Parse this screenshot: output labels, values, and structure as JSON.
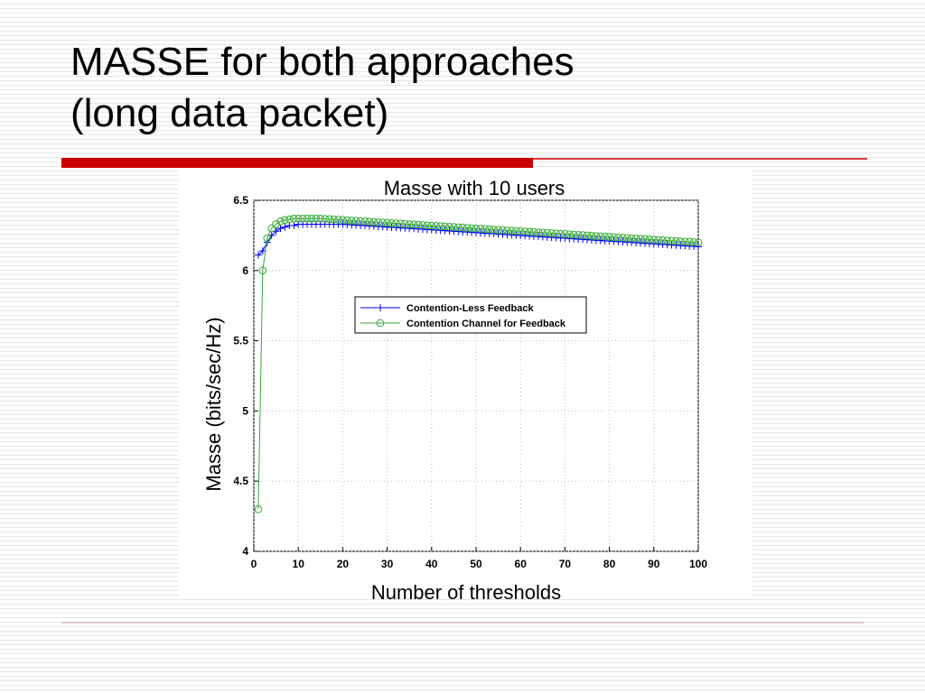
{
  "slide": {
    "title_lines": [
      "MASSE for both approaches",
      "(long data packet)"
    ]
  },
  "chart_data": {
    "type": "line",
    "title": "Masse with 10 users",
    "x_label": "Number of thresholds",
    "y_label": "Masse (bits/sec/Hz)",
    "x": [
      1,
      2,
      3,
      4,
      5,
      6,
      7,
      8,
      9,
      10,
      11,
      12,
      13,
      14,
      15,
      16,
      17,
      18,
      19,
      20,
      21,
      22,
      23,
      24,
      25,
      26,
      27,
      28,
      29,
      30,
      31,
      32,
      33,
      34,
      35,
      36,
      37,
      38,
      39,
      40,
      41,
      42,
      43,
      44,
      45,
      46,
      47,
      48,
      49,
      50,
      51,
      52,
      53,
      54,
      55,
      56,
      57,
      58,
      59,
      60,
      61,
      62,
      63,
      64,
      65,
      66,
      67,
      68,
      69,
      70,
      71,
      72,
      73,
      74,
      75,
      76,
      77,
      78,
      79,
      80,
      81,
      82,
      83,
      84,
      85,
      86,
      87,
      88,
      89,
      90,
      91,
      92,
      93,
      94,
      95,
      96,
      97,
      98,
      99,
      100
    ],
    "series": [
      {
        "name": "Contention-Less Feedback",
        "color": "#0000ff",
        "marker": "plus",
        "values": [
          6.11,
          6.14,
          6.2,
          6.25,
          6.28,
          6.3,
          6.31,
          6.32,
          6.32,
          6.33,
          6.33,
          6.33,
          6.33,
          6.33,
          6.33,
          6.33,
          6.33,
          6.33,
          6.33,
          6.33,
          6.328,
          6.326,
          6.324,
          6.322,
          6.32,
          6.318,
          6.316,
          6.314,
          6.312,
          6.31,
          6.308,
          6.306,
          6.304,
          6.302,
          6.3,
          6.298,
          6.296,
          6.294,
          6.292,
          6.29,
          6.288,
          6.286,
          6.284,
          6.282,
          6.28,
          6.278,
          6.276,
          6.274,
          6.272,
          6.27,
          6.268,
          6.266,
          6.264,
          6.262,
          6.26,
          6.258,
          6.256,
          6.254,
          6.252,
          6.25,
          6.248,
          6.246,
          6.244,
          6.242,
          6.24,
          6.238,
          6.236,
          6.234,
          6.232,
          6.23,
          6.228,
          6.226,
          6.224,
          6.222,
          6.22,
          6.218,
          6.216,
          6.214,
          6.212,
          6.21,
          6.208,
          6.206,
          6.204,
          6.202,
          6.2,
          6.198,
          6.196,
          6.194,
          6.192,
          6.19,
          6.188,
          6.186,
          6.184,
          6.182,
          6.18,
          6.178,
          6.176,
          6.174,
          6.172,
          6.17
        ]
      },
      {
        "name": "Contention Channel for Feedback",
        "color": "#33aa33",
        "marker": "circle",
        "values": [
          4.3,
          6,
          6.23,
          6.3,
          6.33,
          6.35,
          6.36,
          6.365,
          6.37,
          6.37,
          6.37,
          6.37,
          6.37,
          6.37,
          6.37,
          6.368,
          6.366,
          6.364,
          6.362,
          6.36,
          6.358,
          6.356,
          6.354,
          6.352,
          6.35,
          6.348,
          6.346,
          6.344,
          6.342,
          6.34,
          6.338,
          6.336,
          6.334,
          6.332,
          6.33,
          6.328,
          6.326,
          6.324,
          6.322,
          6.32,
          6.318,
          6.316,
          6.314,
          6.312,
          6.31,
          6.308,
          6.306,
          6.304,
          6.302,
          6.3,
          6.298,
          6.296,
          6.294,
          6.292,
          6.29,
          6.288,
          6.286,
          6.284,
          6.282,
          6.28,
          6.278,
          6.276,
          6.274,
          6.272,
          6.27,
          6.268,
          6.266,
          6.264,
          6.262,
          6.26,
          6.258,
          6.256,
          6.254,
          6.252,
          6.25,
          6.248,
          6.246,
          6.244,
          6.242,
          6.24,
          6.238,
          6.236,
          6.234,
          6.232,
          6.23,
          6.228,
          6.226,
          6.224,
          6.222,
          6.22,
          6.218,
          6.216,
          6.214,
          6.212,
          6.21,
          6.208,
          6.206,
          6.204,
          6.202,
          6.2
        ]
      }
    ],
    "xlim": [
      0,
      100
    ],
    "xticks": [
      0,
      10,
      20,
      30,
      40,
      50,
      60,
      70,
      80,
      90,
      100
    ],
    "ylim": [
      4,
      6.5
    ],
    "yticks": [
      4,
      4.5,
      5,
      5.5,
      6,
      6.5
    ],
    "grid": true
  }
}
